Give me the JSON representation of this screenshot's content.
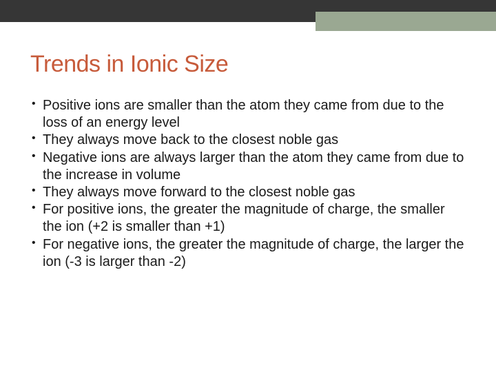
{
  "slide": {
    "title": "Trends in Ionic Size",
    "title_color": "#c75b3b",
    "title_fontsize": 34,
    "body_fontsize": 20,
    "body_color": "#1a1a1a",
    "background_color": "#ffffff",
    "top_bar_dark_color": "#363636",
    "top_bar_sage_color": "#9aa892",
    "bullets": [
      "Positive ions are smaller than the atom they came from due to the loss of an energy level",
      "They always move back to the closest noble gas",
      "Negative ions are always larger than the atom they came from due to the increase in volume",
      "They always move forward to the closest noble gas",
      "For positive ions, the greater the magnitude of charge, the smaller the ion (+2 is smaller than +1)",
      "For negative ions, the greater the magnitude of charge, the larger the ion (-3 is larger than -2)"
    ]
  }
}
